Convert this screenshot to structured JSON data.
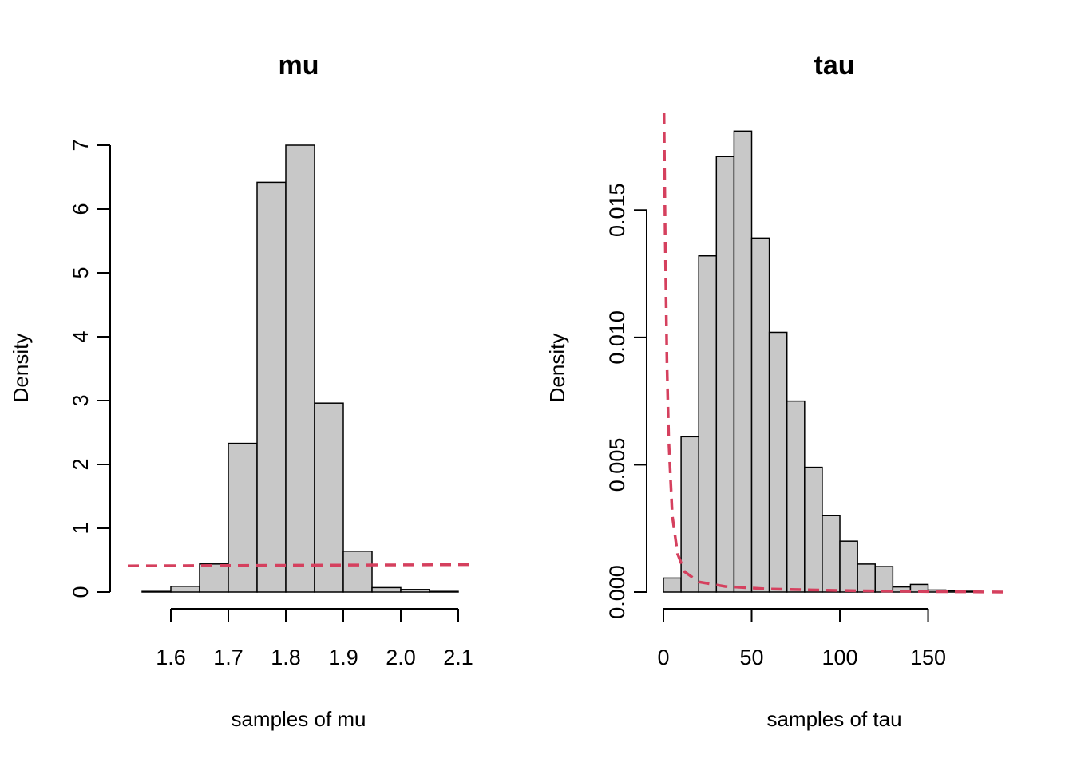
{
  "chart_data": [
    {
      "type": "bar",
      "title": "mu",
      "xlabel": "samples of mu",
      "ylabel": "Density",
      "bin_edges": [
        1.55,
        1.6,
        1.65,
        1.7,
        1.75,
        1.8,
        1.85,
        1.9,
        1.95,
        2.0,
        2.05,
        2.1
      ],
      "values": [
        0.01,
        0.09,
        0.44,
        2.33,
        6.42,
        7.0,
        2.96,
        0.64,
        0.07,
        0.04,
        0.01
      ],
      "xticks": [
        "1.6",
        "1.7",
        "1.8",
        "1.9",
        "2.0",
        "2.1"
      ],
      "yticks": [
        "0",
        "1",
        "2",
        "3",
        "4",
        "5",
        "6",
        "7"
      ],
      "xlim": [
        1.525,
        2.125
      ],
      "ylim": [
        0,
        7.5
      ],
      "bar_color": "#c8c8c8",
      "prior_curve": {
        "style": "dashed",
        "color": "#d5405e",
        "x": [
          1.525,
          2.125
        ],
        "y": [
          0.41,
          0.43
        ]
      }
    },
    {
      "type": "bar",
      "title": "tau",
      "xlabel": "samples of tau",
      "ylabel": "Density",
      "bin_edges": [
        0,
        10,
        20,
        30,
        40,
        50,
        60,
        70,
        80,
        90,
        100,
        110,
        120,
        130,
        140,
        150,
        160,
        170,
        180
      ],
      "values": [
        0.00055,
        0.0061,
        0.0132,
        0.0171,
        0.0181,
        0.0139,
        0.0102,
        0.0075,
        0.0049,
        0.003,
        0.002,
        0.0011,
        0.001,
        0.0002,
        0.0003,
        8e-05,
        5e-05,
        3e-05
      ],
      "xticks": [
        "0",
        "50",
        "100",
        "150"
      ],
      "yticks": [
        "0.000",
        "0.005",
        "0.010",
        "0.015"
      ],
      "xlim": [
        0,
        195
      ],
      "ylim": [
        0,
        0.0188
      ],
      "bar_color": "#c8c8c8",
      "prior_curve": {
        "style": "dashed",
        "color": "#d5405e",
        "x": [
          0.3,
          0.5,
          1,
          2,
          3,
          5,
          8,
          12,
          20,
          35,
          60,
          100,
          150,
          195
        ],
        "y": [
          0.0188,
          0.0175,
          0.014,
          0.009,
          0.006,
          0.003,
          0.0015,
          0.0008,
          0.0004,
          0.00022,
          0.00012,
          6e-05,
          2e-05,
          0.0
        ]
      }
    }
  ]
}
